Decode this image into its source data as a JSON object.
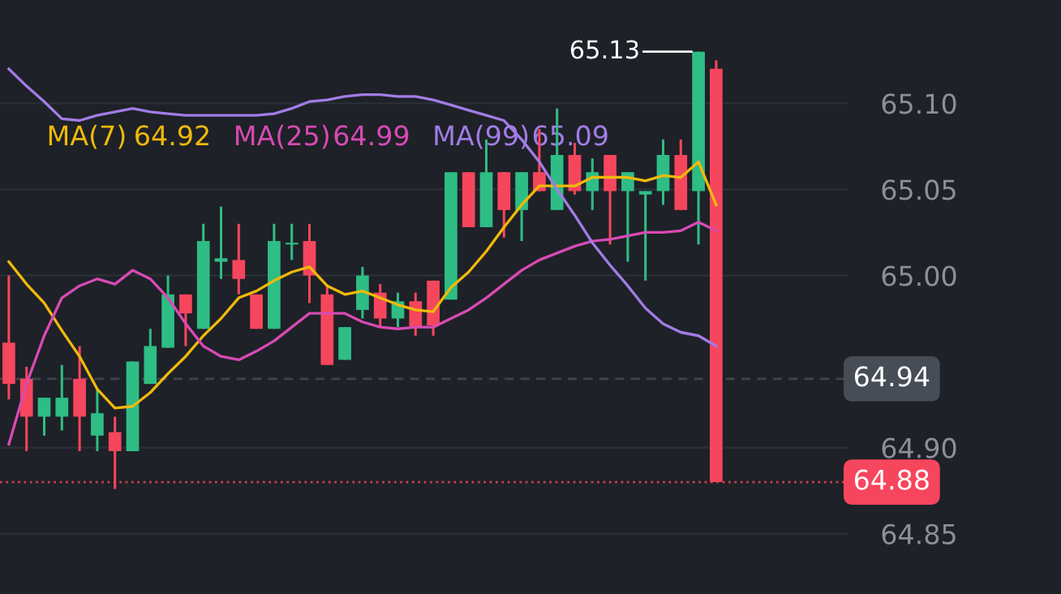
{
  "chart_data": {
    "type": "candlestick",
    "categories": [
      null,
      null,
      null,
      null,
      null,
      null,
      null,
      null,
      null,
      null,
      null,
      null,
      null,
      null,
      null,
      null,
      null,
      null,
      null,
      null,
      null,
      null,
      null,
      null,
      null,
      null,
      null,
      null,
      null,
      null,
      null,
      null,
      null,
      null,
      null,
      null,
      null,
      null,
      null,
      null,
      null
    ],
    "ohlc": [
      [
        64.961,
        65.0,
        64.928,
        64.937
      ],
      [
        64.94,
        64.947,
        64.898,
        64.918
      ],
      [
        64.918,
        64.929,
        64.907,
        64.929
      ],
      [
        64.918,
        64.948,
        64.91,
        64.929
      ],
      [
        64.94,
        64.959,
        64.898,
        64.918
      ],
      [
        64.907,
        64.934,
        64.898,
        64.92
      ],
      [
        64.909,
        64.918,
        64.876,
        64.898
      ],
      [
        64.898,
        64.95,
        64.898,
        64.95
      ],
      [
        64.937,
        64.969,
        64.937,
        64.959
      ],
      [
        64.958,
        65.0,
        64.958,
        64.989
      ],
      [
        64.989,
        64.989,
        64.959,
        64.978
      ],
      [
        64.969,
        65.03,
        64.969,
        65.02
      ],
      [
        65.008,
        65.04,
        64.998,
        65.01
      ],
      [
        65.009,
        65.03,
        64.989,
        64.998
      ],
      [
        64.989,
        64.989,
        64.969,
        64.969
      ],
      [
        64.969,
        65.03,
        64.969,
        65.02
      ],
      [
        65.018,
        65.03,
        65.009,
        65.019
      ],
      [
        65.02,
        65.03,
        64.984,
        65.0
      ],
      [
        64.989,
        64.994,
        64.948,
        64.948
      ],
      [
        64.951,
        64.97,
        64.951,
        64.97
      ],
      [
        64.98,
        65.005,
        64.975,
        65.0
      ],
      [
        64.99,
        64.995,
        64.97,
        64.975
      ],
      [
        64.975,
        64.99,
        64.97,
        64.985
      ],
      [
        64.985,
        64.99,
        64.965,
        64.97
      ],
      [
        64.997,
        64.997,
        64.965,
        64.971
      ],
      [
        64.986,
        65.06,
        64.986,
        65.06
      ],
      [
        65.06,
        65.06,
        65.028,
        65.028
      ],
      [
        65.028,
        65.079,
        65.028,
        65.06
      ],
      [
        65.06,
        65.06,
        65.022,
        65.038
      ],
      [
        65.038,
        65.06,
        65.02,
        65.06
      ],
      [
        65.06,
        65.085,
        65.049,
        65.049
      ],
      [
        65.038,
        65.097,
        65.038,
        65.07
      ],
      [
        65.07,
        65.077,
        65.047,
        65.049
      ],
      [
        65.049,
        65.068,
        65.038,
        65.06
      ],
      [
        65.07,
        65.07,
        65.018,
        65.049
      ],
      [
        65.049,
        65.06,
        65.008,
        65.06
      ],
      [
        65.047,
        65.049,
        64.997,
        65.049
      ],
      [
        65.049,
        65.079,
        65.041,
        65.07
      ],
      [
        65.07,
        65.079,
        65.038,
        65.038
      ],
      [
        65.049,
        65.13,
        65.018,
        65.13
      ],
      [
        65.12,
        65.125,
        64.88,
        64.88
      ]
    ],
    "colors": [
      "#f6465d",
      "#f6465d",
      "#2ebd85",
      "#2ebd85",
      "#f6465d",
      "#2ebd85",
      "#f6465d",
      "#2ebd85",
      "#2ebd85",
      "#2ebd85",
      "#f6465d",
      "#2ebd85",
      "#2ebd85",
      "#f6465d",
      "#f6465d",
      "#2ebd85",
      "#2ebd85",
      "#f6465d",
      "#f6465d",
      "#2ebd85",
      "#2ebd85",
      "#f6465d",
      "#2ebd85",
      "#f6465d",
      "#f6465d",
      "#2ebd85",
      "#f6465d",
      "#2ebd85",
      "#f6465d",
      "#2ebd85",
      "#f6465d",
      "#2ebd85",
      "#f6465d",
      "#2ebd85",
      "#f6465d",
      "#2ebd85",
      "#2ebd85",
      "#2ebd85",
      "#f6465d",
      "#2ebd85",
      "#f6465d"
    ],
    "series": [
      {
        "name": "MA(7)",
        "type": "line",
        "color": "#f0b90b",
        "values": [
          65.008,
          64.995,
          64.984,
          64.968,
          64.953,
          64.934,
          64.923,
          64.924,
          64.932,
          64.943,
          64.953,
          64.965,
          64.975,
          64.987,
          64.991,
          64.997,
          65.002,
          65.005,
          64.994,
          64.989,
          64.991,
          64.987,
          64.983,
          64.98,
          64.979,
          64.993,
          65.002,
          65.014,
          65.028,
          65.041,
          65.052,
          65.052,
          65.052,
          65.057,
          65.057,
          65.057,
          65.055,
          65.058,
          65.057,
          65.066,
          65.041
        ]
      },
      {
        "name": "MA(25)",
        "type": "line",
        "color": "#d84ab4",
        "values": [
          64.902,
          64.937,
          64.965,
          64.987,
          64.994,
          64.998,
          64.995,
          65.003,
          64.998,
          64.987,
          64.972,
          64.959,
          64.953,
          64.951,
          64.956,
          64.962,
          64.97,
          64.978,
          64.978,
          64.978,
          64.973,
          64.97,
          64.969,
          64.97,
          64.97,
          64.975,
          64.98,
          64.987,
          64.995,
          65.003,
          65.009,
          65.013,
          65.017,
          65.02,
          65.021,
          65.023,
          65.025,
          65.025,
          65.026,
          65.031,
          65.026
        ]
      },
      {
        "name": "MA(99)",
        "type": "line",
        "color": "#a27ce6",
        "values": [
          65.12,
          65.11,
          65.101,
          65.091,
          65.09,
          65.093,
          65.095,
          65.097,
          65.095,
          65.094,
          65.093,
          65.093,
          65.093,
          65.093,
          65.093,
          65.094,
          65.097,
          65.101,
          65.102,
          65.104,
          65.105,
          65.105,
          65.104,
          65.104,
          65.102,
          65.099,
          65.096,
          65.093,
          65.09,
          65.079,
          65.066,
          65.05,
          65.035,
          65.019,
          65.006,
          64.994,
          64.981,
          64.972,
          64.967,
          64.965,
          64.959
        ]
      }
    ],
    "annotations": [
      "64.92",
      "64.99",
      "65.09",
      "65.13"
    ],
    "ref_lines": [
      {
        "axis": "y",
        "value": 64.94,
        "label": "64.94",
        "color": "#474d57",
        "line_style": "dashed"
      },
      {
        "axis": "y",
        "value": 64.88,
        "label": "64.88",
        "color": "#f6465d",
        "line_style": "dotted"
      }
    ],
    "ylim": [
      64.815,
      65.16
    ],
    "yticks": [
      {
        "value": 65.1,
        "label": "65.10"
      },
      {
        "value": 65.05,
        "label": "65.05"
      },
      {
        "value": 65.0,
        "label": "65.00"
      },
      {
        "value": 64.9,
        "label": "64.90"
      },
      {
        "value": 64.85,
        "label": "64.85"
      }
    ],
    "tick_labels": "y",
    "grid": "y"
  }
}
